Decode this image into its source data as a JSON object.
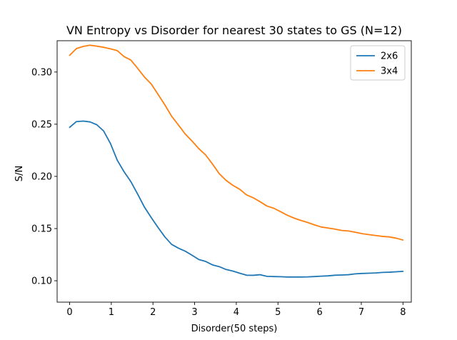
{
  "chart_data": {
    "type": "line",
    "title": "VN Entropy vs Disorder for nearest 30 states to GS (N=12)",
    "xlabel": "Disorder(50 steps)",
    "ylabel": "S/N",
    "xlim": [
      -0.3,
      8.2
    ],
    "ylim": [
      0.0795,
      0.33
    ],
    "xticks": [
      0,
      1,
      2,
      3,
      4,
      5,
      6,
      7,
      8
    ],
    "xtick_labels": [
      "0",
      "1",
      "2",
      "3",
      "4",
      "5",
      "6",
      "7",
      "8"
    ],
    "yticks": [
      0.1,
      0.15,
      0.2,
      0.25,
      0.3
    ],
    "ytick_labels": [
      "0.10",
      "0.15",
      "0.20",
      "0.25",
      "0.30"
    ],
    "legend_position": "top-right",
    "x": [
      0.0,
      0.163,
      0.327,
      0.49,
      0.653,
      0.816,
      0.98,
      1.143,
      1.306,
      1.469,
      1.633,
      1.796,
      1.959,
      2.122,
      2.286,
      2.449,
      2.612,
      2.776,
      2.939,
      3.102,
      3.265,
      3.429,
      3.592,
      3.755,
      3.918,
      4.082,
      4.245,
      4.408,
      4.571,
      4.735,
      4.898,
      5.061,
      5.224,
      5.388,
      5.551,
      5.714,
      5.878,
      6.041,
      6.204,
      6.367,
      6.531,
      6.694,
      6.857,
      7.02,
      7.184,
      7.347,
      7.51,
      7.673,
      7.837,
      8.0
    ],
    "series": [
      {
        "name": "2x6",
        "color": "#1f77b4",
        "values": [
          0.247,
          0.2525,
          0.253,
          0.2522,
          0.2495,
          0.2435,
          0.2315,
          0.2155,
          0.2045,
          0.195,
          0.183,
          0.1705,
          0.1605,
          0.151,
          0.142,
          0.1348,
          0.1312,
          0.1283,
          0.1244,
          0.1203,
          0.1185,
          0.1152,
          0.1135,
          0.1108,
          0.1093,
          0.1072,
          0.1053,
          0.1052,
          0.1058,
          0.1042,
          0.104,
          0.1039,
          0.1036,
          0.1036,
          0.1036,
          0.1037,
          0.104,
          0.1044,
          0.1047,
          0.1053,
          0.1055,
          0.1058,
          0.1066,
          0.107,
          0.1072,
          0.1075,
          0.108,
          0.1082,
          0.1086,
          0.109
        ]
      },
      {
        "name": "3x4",
        "color": "#ff7f0e",
        "values": [
          0.316,
          0.3225,
          0.3245,
          0.3257,
          0.3248,
          0.3237,
          0.3222,
          0.3205,
          0.3148,
          0.3115,
          0.3035,
          0.2952,
          0.2885,
          0.2786,
          0.2685,
          0.2576,
          0.2492,
          0.2405,
          0.2338,
          0.2265,
          0.2205,
          0.2118,
          0.2025,
          0.1962,
          0.1914,
          0.1877,
          0.1823,
          0.1795,
          0.1757,
          0.1716,
          0.1695,
          0.1662,
          0.1628,
          0.16,
          0.1578,
          0.1558,
          0.1535,
          0.1515,
          0.1505,
          0.1495,
          0.1482,
          0.1477,
          0.1465,
          0.1451,
          0.1442,
          0.1433,
          0.1425,
          0.142,
          0.1408,
          0.139
        ]
      }
    ]
  }
}
